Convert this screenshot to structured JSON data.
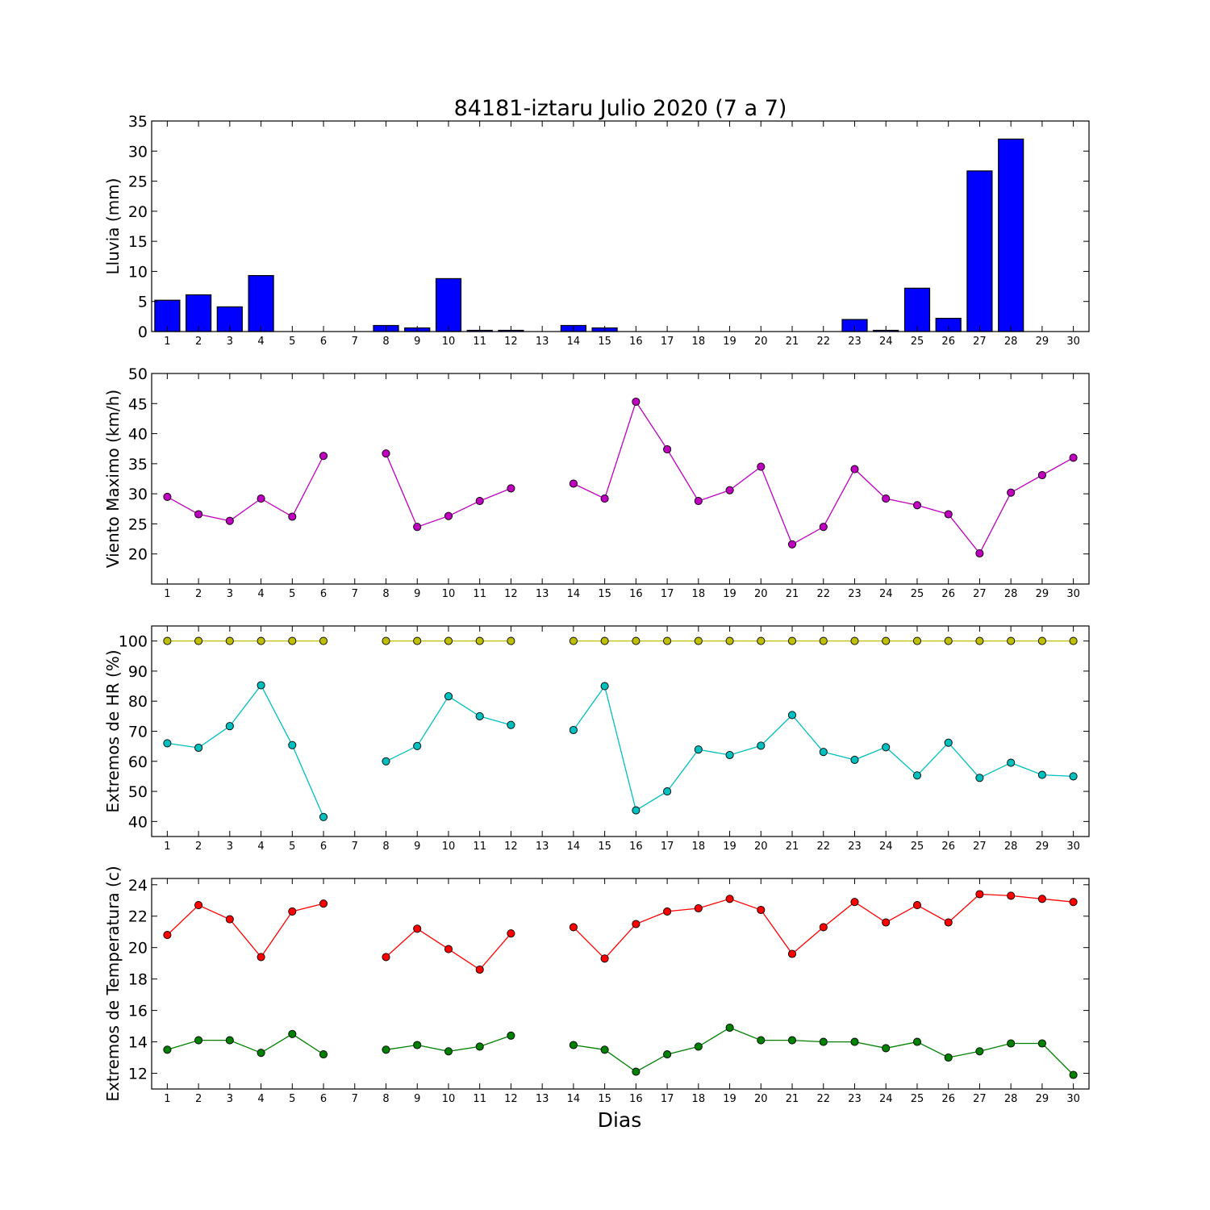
{
  "title": "84181-iztaru Julio 2020  (7 a 7)",
  "xlabel": "Dias",
  "days": [
    1,
    2,
    3,
    4,
    5,
    6,
    7,
    8,
    9,
    10,
    11,
    12,
    13,
    14,
    15,
    16,
    17,
    18,
    19,
    20,
    21,
    22,
    23,
    24,
    25,
    26,
    27,
    28,
    29,
    30
  ],
  "chart_data": [
    {
      "type": "bar",
      "ylabel": "Lluvia (mm)",
      "ylim": [
        0,
        35
      ],
      "yticks": [
        0,
        5,
        10,
        15,
        20,
        25,
        30,
        35
      ],
      "series": [
        {
          "color": "#0000ff",
          "values": [
            5.2,
            6.1,
            4.1,
            9.3,
            0,
            0,
            0,
            1.0,
            0.6,
            8.8,
            0.2,
            0.2,
            0,
            1.0,
            0.6,
            0,
            0,
            0,
            0,
            0,
            0,
            0,
            2.0,
            0.2,
            7.2,
            2.2,
            26.7,
            32.0,
            0,
            0
          ]
        }
      ]
    },
    {
      "type": "line",
      "ylabel": "Viento Maximo (km/h)",
      "ylim": [
        15,
        50
      ],
      "yticks": [
        20,
        25,
        30,
        35,
        40,
        45,
        50
      ],
      "series": [
        {
          "color": "#bf00bf",
          "values": [
            29.5,
            26.6,
            25.5,
            29.2,
            26.2,
            36.3,
            null,
            36.7,
            24.5,
            26.3,
            28.8,
            30.9,
            null,
            31.7,
            29.2,
            45.3,
            37.4,
            28.8,
            30.6,
            34.5,
            21.6,
            24.5,
            34.1,
            29.2,
            28.1,
            26.6,
            20.1,
            30.2,
            33.1,
            36.0
          ]
        }
      ]
    },
    {
      "type": "line",
      "ylabel": "Extremos de HR (%)",
      "ylim": [
        35,
        105
      ],
      "yticks": [
        40,
        50,
        60,
        70,
        80,
        90,
        100
      ],
      "series": [
        {
          "color": "#bfbf00",
          "values": [
            100,
            100,
            100,
            100,
            100,
            100,
            null,
            100,
            100,
            100,
            100,
            100,
            null,
            100,
            100,
            100,
            100,
            100,
            100,
            100,
            100,
            100,
            100,
            100,
            100,
            100,
            100,
            100,
            100,
            100
          ]
        },
        {
          "color": "#00bfbf",
          "values": [
            66,
            64.5,
            71.7,
            85.3,
            65.4,
            41.5,
            null,
            60,
            65.1,
            81.6,
            75,
            72.1,
            null,
            70.4,
            85,
            43.7,
            50,
            63.9,
            62.1,
            65.2,
            75.4,
            63.1,
            60.5,
            64.7,
            55.3,
            66.2,
            54.5,
            59.5,
            55.5,
            55
          ]
        }
      ]
    },
    {
      "type": "line",
      "ylabel": "Extremos de Temperatura (c)",
      "ylim": [
        11,
        24.4
      ],
      "yticks": [
        12,
        14,
        16,
        18,
        20,
        22,
        24
      ],
      "series": [
        {
          "color": "#ff0000",
          "values": [
            20.8,
            22.7,
            21.8,
            19.4,
            22.3,
            22.8,
            null,
            19.4,
            21.2,
            19.9,
            18.6,
            20.9,
            null,
            21.3,
            19.3,
            21.5,
            22.3,
            22.5,
            23.1,
            22.4,
            19.6,
            21.3,
            22.9,
            21.6,
            22.7,
            21.6,
            23.4,
            23.3,
            23.1,
            22.9
          ]
        },
        {
          "color": "#008000",
          "values": [
            13.5,
            14.1,
            14.1,
            13.3,
            14.5,
            13.2,
            null,
            13.5,
            13.8,
            13.4,
            13.7,
            14.4,
            null,
            13.8,
            13.5,
            12.1,
            13.2,
            13.7,
            14.9,
            14.1,
            14.1,
            14.0,
            14.0,
            13.6,
            14.0,
            13.0,
            13.4,
            13.9,
            13.9,
            11.9
          ]
        }
      ]
    }
  ]
}
